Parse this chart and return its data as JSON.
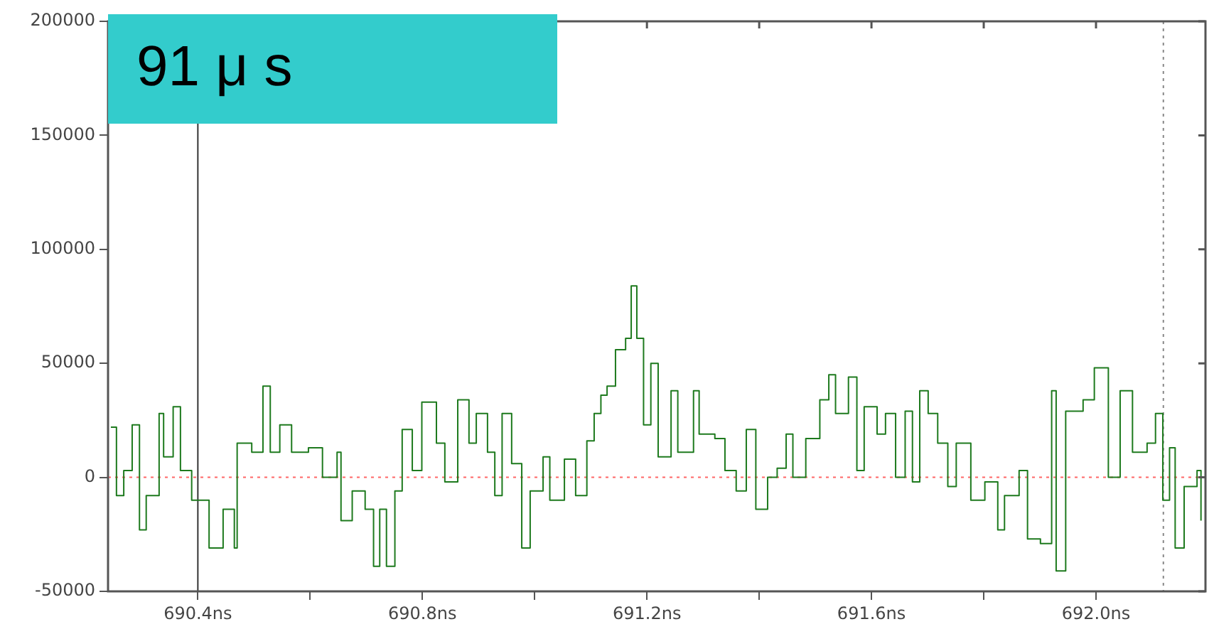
{
  "chart_data": {
    "type": "step",
    "annotations": [
      "91 μ s"
    ],
    "x": [
      690.245,
      690.255,
      690.268,
      690.283,
      690.296,
      690.308,
      690.331,
      690.339,
      690.356,
      690.369,
      690.389,
      690.42,
      690.445,
      690.465,
      690.47,
      690.496,
      690.516,
      690.529,
      690.546,
      690.567,
      690.597,
      690.622,
      690.648,
      690.655,
      690.675,
      690.698,
      690.713,
      690.724,
      690.736,
      690.751,
      690.764,
      690.782,
      690.799,
      690.825,
      690.84,
      690.863,
      690.883,
      690.896,
      690.916,
      690.929,
      690.942,
      690.959,
      690.977,
      690.992,
      691.015,
      691.027,
      691.053,
      691.073,
      691.093,
      691.106,
      691.118,
      691.129,
      691.144,
      691.162,
      691.172,
      691.182,
      691.194,
      691.207,
      691.22,
      691.243,
      691.255,
      691.283,
      691.293,
      691.321,
      691.339,
      691.359,
      691.377,
      691.394,
      691.415,
      691.432,
      691.448,
      691.46,
      691.483,
      691.508,
      691.524,
      691.536,
      691.559,
      691.574,
      691.587,
      691.61,
      691.625,
      691.643,
      691.66,
      691.673,
      691.686,
      691.701,
      691.718,
      691.736,
      691.751,
      691.777,
      691.802,
      691.825,
      691.837,
      691.863,
      691.878,
      691.901,
      691.921,
      691.929,
      691.946,
      691.977,
      691.997,
      692.022,
      692.043,
      692.065,
      692.091,
      692.106,
      692.119,
      692.131,
      692.141,
      692.157,
      692.18,
      692.187
    ],
    "series": [
      {
        "color": "#1e7a1e",
        "values": [
          22000,
          -8000,
          3000,
          23000,
          -23000,
          -8000,
          28000,
          9000,
          31000,
          3000,
          -10000,
          -31000,
          -14000,
          -31000,
          15000,
          11000,
          40000,
          11000,
          23000,
          11000,
          13000,
          0,
          11000,
          -19000,
          -6000,
          -14000,
          -39000,
          -14000,
          -39000,
          -6000,
          21000,
          3000,
          33000,
          15000,
          -2000,
          34000,
          15000,
          28000,
          11000,
          -8000,
          28000,
          6000,
          -31000,
          -6000,
          9000,
          -10000,
          8000,
          -8000,
          16000,
          28000,
          36000,
          40000,
          56000,
          61000,
          84000,
          61000,
          23000,
          50000,
          9000,
          38000,
          11000,
          38000,
          19000,
          17000,
          3000,
          -6000,
          21000,
          -14000,
          0,
          4000,
          19000,
          0,
          17000,
          34000,
          45000,
          28000,
          44000,
          3000,
          31000,
          19000,
          28000,
          0,
          29000,
          -2000,
          38000,
          28000,
          15000,
          -4000,
          15000,
          -10000,
          -2000,
          -23000,
          -8000,
          3000,
          -27000,
          -29000,
          38000,
          -41000,
          29000,
          34000,
          48000,
          0,
          38000,
          11000,
          15000,
          28000,
          -10000,
          13000,
          -31000,
          -4000,
          3000,
          -19000
        ]
      }
    ],
    "xlim": [
      690.24,
      692.195
    ],
    "xticks": [
      {
        "value": 690.4,
        "label": "690.4ns"
      },
      {
        "value": 690.6,
        "label": null
      },
      {
        "value": 690.8,
        "label": "690.8ns"
      },
      {
        "value": 691.0,
        "label": null
      },
      {
        "value": 691.2,
        "label": "691.2ns"
      },
      {
        "value": 691.4,
        "label": null
      },
      {
        "value": 691.6,
        "label": "691.6ns"
      },
      {
        "value": 691.8,
        "label": null
      },
      {
        "value": 692.0,
        "label": "692.0ns"
      }
    ],
    "ylim": [
      -50000,
      200000
    ],
    "yticks": [
      -50000,
      0,
      50000,
      100000,
      150000,
      200000
    ],
    "ref_lines": [
      {
        "axis": "y",
        "value": 0,
        "label": null,
        "color": "#ff6666",
        "line_style": "dotted"
      },
      {
        "axis": "x",
        "value": 690.4,
        "label": null,
        "color": "#333333",
        "line_style": "solid"
      },
      {
        "axis": "x",
        "value": 692.12,
        "label": null,
        "color": "#888888",
        "line_style": "dotted"
      }
    ],
    "grid": false,
    "legend": false,
    "marker": "none",
    "line_style": "solid"
  }
}
